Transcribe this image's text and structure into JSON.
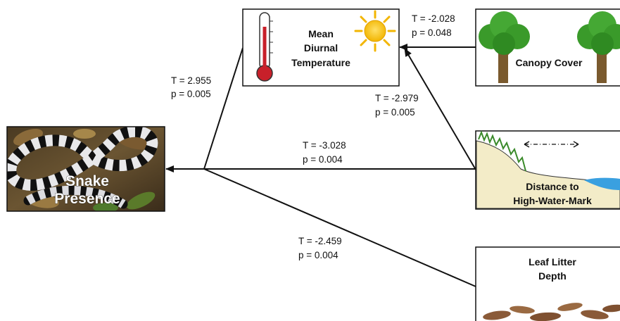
{
  "nodes": {
    "snake": {
      "line1": "Snake",
      "line2": "Presence"
    },
    "temperature": {
      "line1": "Mean",
      "line2": "Diurnal",
      "line3": "Temperature"
    },
    "canopy": {
      "line1": "Canopy Cover"
    },
    "distance": {
      "line1": "Distance to",
      "line2": "High-Water-Mark"
    },
    "litter": {
      "line1": "Leaf Litter",
      "line2": "Depth"
    }
  },
  "paths": {
    "canopy_to_temperature": {
      "t": "T = -2.028",
      "p": "p = 0.048"
    },
    "distance_to_temperature": {
      "t": "T = -2.979",
      "p": "p = 0.005"
    },
    "temperature_to_snake": {
      "t": "T = 2.955",
      "p": "p = 0.005"
    },
    "distance_to_snake": {
      "t": "T = -3.028",
      "p": "p = 0.004"
    },
    "litter_to_snake": {
      "t": "T = -2.459",
      "p": "p = 0.004"
    }
  },
  "icons": [
    "thermometer-icon",
    "sun-icon",
    "tree-icon",
    "riverbank-icon",
    "leaf-icon",
    "snake-photo"
  ],
  "colors": {
    "line": "#111111",
    "mercury": "#c8202a",
    "sun": "#f2c200",
    "tree_crown": "#3a9a2a",
    "trunk": "#7a5a2e",
    "bank": "#f3ecc8",
    "water": "#3aa0e0",
    "leaf": "#8a5a38"
  }
}
